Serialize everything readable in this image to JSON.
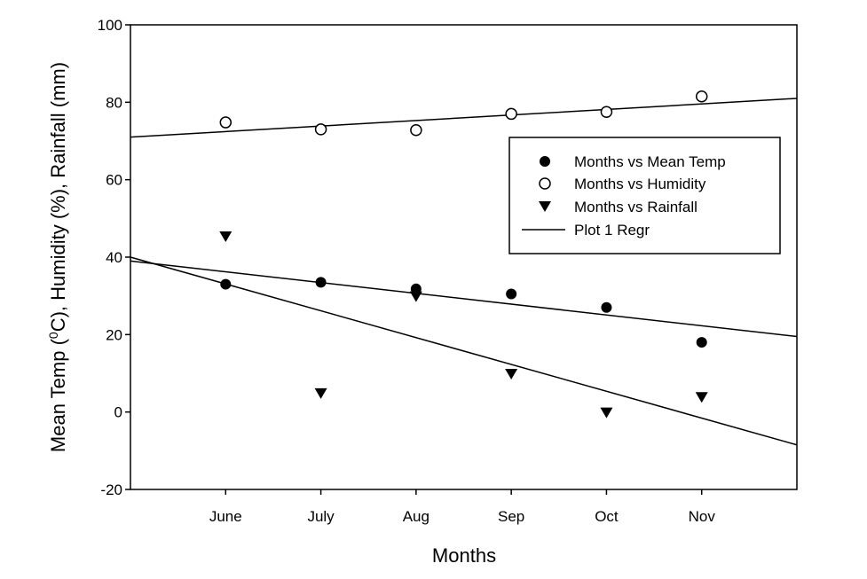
{
  "chart_data": {
    "type": "scatter",
    "xlabel": "Months",
    "ylabel_parts": [
      "Mean Temp (",
      "0",
      "C), Humidity (%), Rainfall (mm)"
    ],
    "categories": [
      "June",
      "July",
      "Aug",
      "Sep",
      "Oct",
      "Nov"
    ],
    "xlim": [
      0,
      7
    ],
    "ylim": [
      -20,
      100
    ],
    "yticks": [
      -20,
      0,
      20,
      40,
      60,
      80,
      100
    ],
    "ytick_labels": [
      "-20",
      "0",
      "20",
      "40",
      "60",
      "80",
      "100"
    ],
    "grid": false,
    "legend_position": "right",
    "series": [
      {
        "name": "Months vs Mean Temp",
        "marker": "filled-circle",
        "x": [
          1,
          2,
          3,
          4,
          5,
          6
        ],
        "y": [
          33,
          33.5,
          31.8,
          30.5,
          27,
          18
        ]
      },
      {
        "name": "Months vs Humidity",
        "marker": "open-circle",
        "x": [
          1,
          2,
          3,
          4,
          5,
          6
        ],
        "y": [
          74.8,
          73,
          72.8,
          77,
          77.5,
          81.5
        ]
      },
      {
        "name": "Months vs Rainfall",
        "marker": "down-triangle",
        "x": [
          1,
          2,
          3,
          4,
          5,
          6
        ],
        "y": [
          45.5,
          5,
          30,
          10,
          0,
          4
        ]
      }
    ],
    "regression_label": "Plot 1 Regr",
    "regression_lines": [
      {
        "x": [
          0,
          7
        ],
        "y": [
          71,
          81
        ]
      },
      {
        "x": [
          0,
          7
        ],
        "y": [
          39,
          19.5
        ]
      },
      {
        "x": [
          0,
          7
        ],
        "y": [
          40,
          -8.5
        ]
      }
    ]
  }
}
